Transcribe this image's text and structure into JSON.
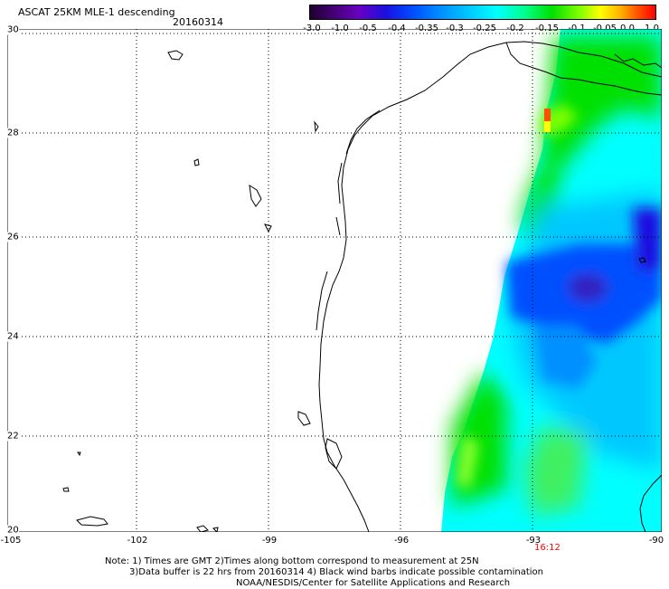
{
  "title": "ASCAT 25KM MLE-1 descending",
  "date": "20160314",
  "colorbar": {
    "tick_labels": [
      "-3.0",
      "-1.0",
      "-0.5",
      "-0.4",
      "-0.35",
      "-0.3",
      "-0.25",
      "-0.2",
      "-0.15",
      "-0.1",
      "-0.05",
      "0.0",
      "1.0"
    ]
  },
  "axes": {
    "x_labels": [
      "-105",
      "-102",
      "-99",
      "-96",
      "-93",
      "-90"
    ],
    "y_labels": [
      "30",
      "28",
      "26",
      "24",
      "22",
      "20"
    ]
  },
  "time_label": "16:12",
  "notes": {
    "line1": "Note: 1) Times are GMT 2)Times along bottom correspond to measurement at 25N",
    "line2": "3)Data buffer is 22 hrs from 20160314 4) Black wind barbs indicate possible contamination",
    "line3": "NOAA/NESDIS/Center for Satellite Applications and Research"
  },
  "colors": {
    "dark_blue": "#1a10e0",
    "blue": "#0050ff",
    "light_blue": "#00c8ff",
    "cyan": "#00ffff",
    "green": "#00e000",
    "yellow_green": "#80ff00",
    "orange": "#ff5000",
    "time_label_red": "#ff0000"
  }
}
